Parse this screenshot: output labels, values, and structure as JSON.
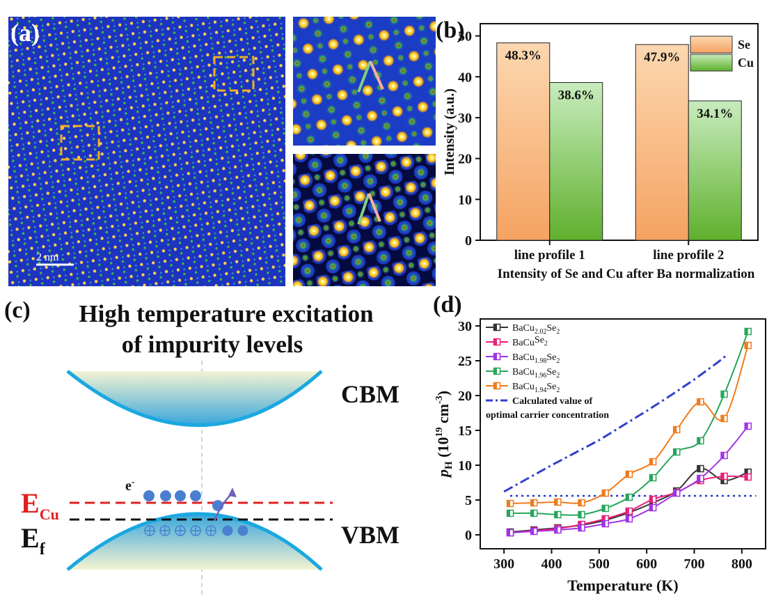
{
  "panel_a": {
    "label": "(a)",
    "scale_bar_text": "2 nm",
    "colors": {
      "bg": "#1f38c8",
      "bright": "#ffd23a",
      "green": "#3cb840",
      "red": "#d22020",
      "dash": "#f0b024"
    }
  },
  "panel_c": {
    "label": "(c)",
    "title_line1": "High temperature excitation",
    "title_line2": "of impurity levels",
    "cbm": "CBM",
    "vbm": "VBM",
    "ecu_main": "E",
    "ecu_sub": "Cu",
    "ef_main": "E",
    "ef_sub": "f",
    "electron_main": "e",
    "electron_sup": "-",
    "colors": {
      "band": "#1aa8e0",
      "ecu_line": "#e02020",
      "ef_line": "#111111",
      "electron": "#4a7fd0"
    }
  },
  "chart_data": [
    {
      "panel_label": "(b)",
      "type": "bar",
      "categories": [
        "line profile 1",
        "line profile 2"
      ],
      "series": [
        {
          "name": "Se",
          "values": [
            48.3,
            47.9
          ],
          "labels": [
            "48.3%",
            "47.9%"
          ],
          "color_top": "#fcd7b0",
          "color_bottom": "#f5a362"
        },
        {
          "name": "Cu",
          "values": [
            38.6,
            34.1
          ],
          "labels": [
            "38.6%",
            "34.1%"
          ],
          "color_top": "#c8ecbd",
          "color_bottom": "#5fb02d"
        }
      ],
      "ylabel": "Intensity (a.u.)",
      "xlabel": "Intensity of Se and Cu after Ba normalization",
      "ylim": [
        0,
        53
      ],
      "yticks": [
        0,
        10,
        20,
        30,
        40,
        50
      ],
      "legend_position": "top-right"
    },
    {
      "panel_label": "(d)",
      "type": "line",
      "xlabel": "Temperature (K)",
      "ylabel_main": "p",
      "ylabel_sub": "H",
      "ylabel_unit": " (10",
      "ylabel_exp": "19",
      "ylabel_unit2": " cm",
      "ylabel_exp2": "-3",
      "ylabel_close": ")",
      "xlim": [
        250,
        850
      ],
      "ylim": [
        -2,
        31
      ],
      "xticks": [
        300,
        400,
        500,
        600,
        700,
        800
      ],
      "yticks": [
        0,
        5,
        10,
        15,
        20,
        25,
        30
      ],
      "series": [
        {
          "name_main": "BaCu",
          "name_sub": "2.02",
          "name_tail": "Se",
          "name_tail_sub": "2",
          "color": "#333333",
          "x": [
            313,
            363,
            413,
            463,
            513,
            563,
            613,
            663,
            713,
            763,
            813
          ],
          "y": [
            0.4,
            0.7,
            1.0,
            1.4,
            2.1,
            3.2,
            4.6,
            6.3,
            9.5,
            7.8,
            9.0
          ]
        },
        {
          "name_main": "BaCu",
          "name_sub": "",
          "name_tail": "Se",
          "name_tail_sub": "2",
          "color": "#e8207a",
          "x": [
            313,
            363,
            413,
            463,
            513,
            563,
            613,
            663,
            713,
            763,
            813
          ],
          "y": [
            0.3,
            0.6,
            0.9,
            1.5,
            2.3,
            3.4,
            5.1,
            6.1,
            7.8,
            8.4,
            8.3
          ]
        },
        {
          "name_main": "BaCu",
          "name_sub": "1.98",
          "name_tail": "Se",
          "name_tail_sub": "2",
          "color": "#a033e6",
          "x": [
            313,
            363,
            413,
            463,
            513,
            563,
            613,
            663,
            713,
            763,
            813
          ],
          "y": [
            0.3,
            0.5,
            0.7,
            1.0,
            1.6,
            2.3,
            3.9,
            6.0,
            8.1,
            11.4,
            15.6
          ]
        },
        {
          "name_main": "BaCu",
          "name_sub": "1.96",
          "name_tail": "Se",
          "name_tail_sub": "2",
          "color": "#26a65b",
          "x": [
            313,
            363,
            413,
            463,
            513,
            563,
            613,
            663,
            713,
            763,
            813
          ],
          "y": [
            3.1,
            3.1,
            2.9,
            2.9,
            3.8,
            5.4,
            8.2,
            11.9,
            13.5,
            20.2,
            29.2
          ]
        },
        {
          "name_main": "BaCu",
          "name_sub": "1.94",
          "name_tail": "Se",
          "name_tail_sub": "2",
          "color": "#f07b1a",
          "x": [
            313,
            363,
            413,
            463,
            513,
            563,
            613,
            663,
            713,
            763,
            813
          ],
          "y": [
            4.5,
            4.6,
            4.7,
            4.6,
            6.0,
            8.7,
            10.5,
            15.1,
            19.1,
            16.7,
            27.2
          ]
        }
      ],
      "calculated": {
        "label_line1": "Calculated value of",
        "label_line2": "optimal carrier concentration",
        "color": "#3040cc",
        "x": [
          300,
          350,
          400,
          450,
          500,
          550,
          600,
          650,
          700,
          750,
          770
        ],
        "y": [
          6.2,
          8.1,
          10.0,
          11.8,
          13.6,
          15.7,
          17.8,
          20.0,
          22.3,
          24.8,
          25.9
        ]
      },
      "hline": {
        "y": 5.6,
        "x": [
          313,
          830
        ],
        "color": "#2030d0"
      }
    }
  ]
}
